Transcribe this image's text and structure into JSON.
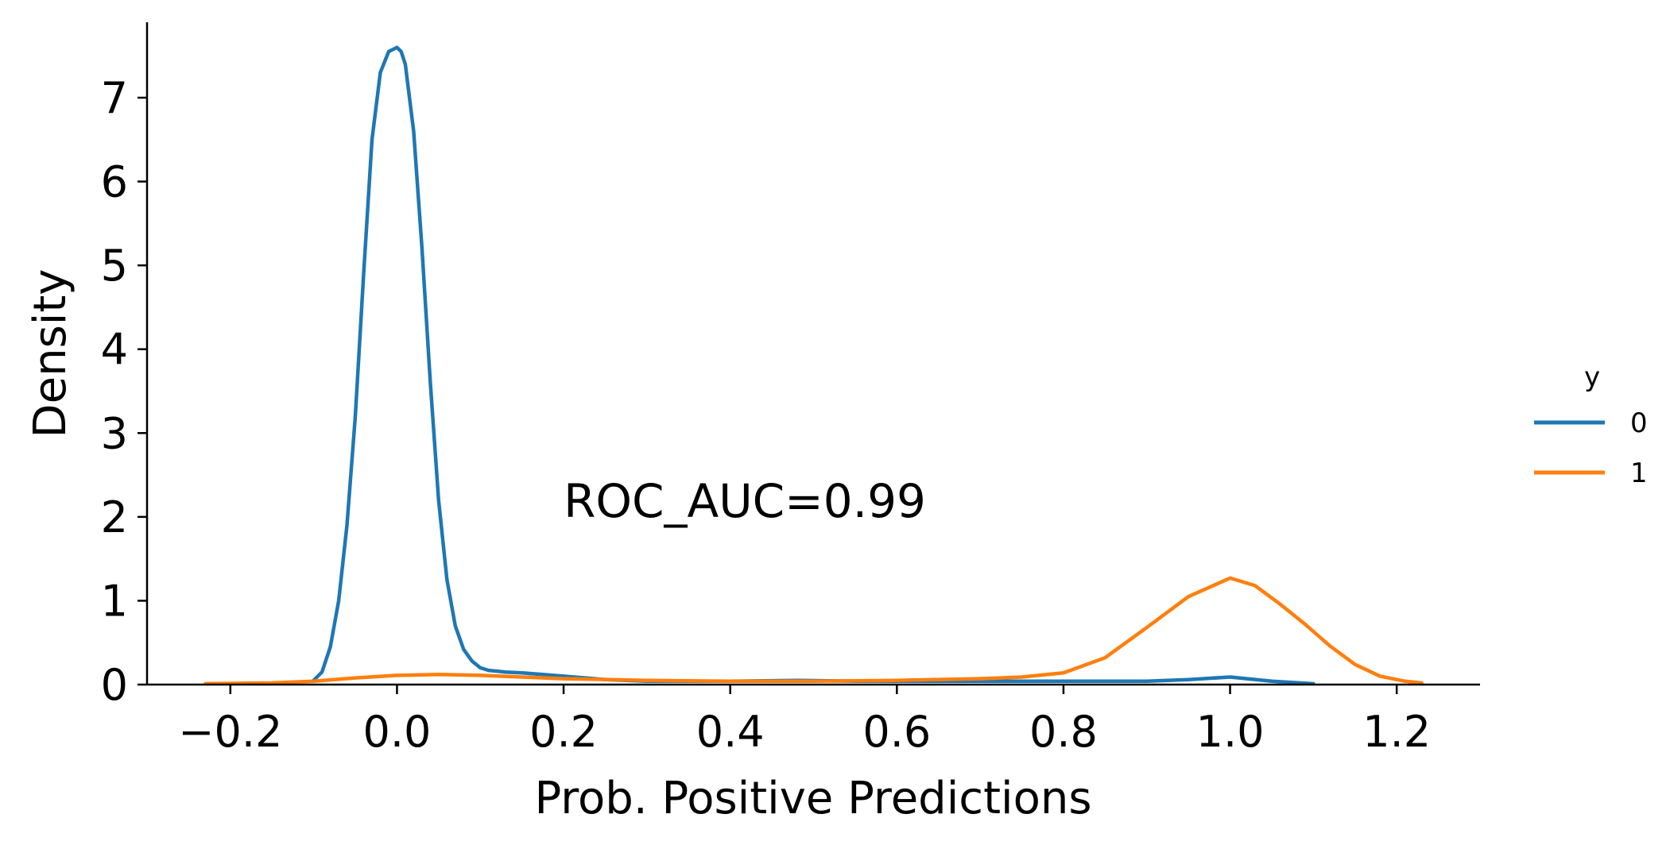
{
  "chart_data": {
    "type": "line",
    "xlabel": "Prob. Positive Predictions",
    "ylabel": "Density",
    "xlim": [
      -0.3,
      1.3
    ],
    "ylim": [
      0,
      7.9
    ],
    "x_ticks": [
      -0.2,
      0.0,
      0.2,
      0.4,
      0.6,
      0.8,
      1.0,
      1.2
    ],
    "x_tick_labels": [
      "−0.2",
      "0.0",
      "0.2",
      "0.4",
      "0.6",
      "0.8",
      "1.0",
      "1.2"
    ],
    "y_ticks": [
      0,
      1,
      2,
      3,
      4,
      5,
      6,
      7
    ],
    "y_tick_labels": [
      "0",
      "1",
      "2",
      "3",
      "4",
      "5",
      "6",
      "7"
    ],
    "grid": false,
    "annotation": {
      "text": "ROC_AUC=0.99",
      "x": 0.2,
      "y": 2.0
    },
    "legend": {
      "title": "y",
      "placement": "outside-right"
    },
    "series": [
      {
        "name": "0",
        "color": "#1f77b4",
        "x": [
          -0.1,
          -0.09,
          -0.08,
          -0.07,
          -0.06,
          -0.05,
          -0.04,
          -0.03,
          -0.02,
          -0.01,
          0.0,
          0.005,
          0.01,
          0.02,
          0.03,
          0.04,
          0.05,
          0.06,
          0.07,
          0.08,
          0.09,
          0.1,
          0.11,
          0.12,
          0.13,
          0.15,
          0.2,
          0.25,
          0.3,
          0.4,
          0.48,
          0.55,
          0.6,
          0.7,
          0.8,
          0.9,
          0.95,
          1.0,
          1.05,
          1.1
        ],
        "y": [
          0.05,
          0.15,
          0.45,
          1.0,
          1.9,
          3.2,
          4.9,
          6.5,
          7.3,
          7.55,
          7.6,
          7.55,
          7.4,
          6.6,
          5.2,
          3.6,
          2.2,
          1.25,
          0.7,
          0.42,
          0.28,
          0.2,
          0.17,
          0.16,
          0.15,
          0.14,
          0.1,
          0.06,
          0.04,
          0.04,
          0.05,
          0.04,
          0.04,
          0.04,
          0.04,
          0.04,
          0.06,
          0.09,
          0.04,
          0.01
        ]
      },
      {
        "name": "1",
        "color": "#ff7f0e",
        "x": [
          -0.23,
          -0.15,
          -0.1,
          -0.05,
          0.0,
          0.05,
          0.1,
          0.15,
          0.2,
          0.3,
          0.4,
          0.5,
          0.6,
          0.7,
          0.75,
          0.8,
          0.85,
          0.9,
          0.95,
          1.0,
          1.03,
          1.06,
          1.09,
          1.12,
          1.15,
          1.18,
          1.21,
          1.23
        ],
        "y": [
          0.01,
          0.02,
          0.04,
          0.08,
          0.11,
          0.12,
          0.11,
          0.09,
          0.07,
          0.05,
          0.04,
          0.04,
          0.05,
          0.07,
          0.09,
          0.14,
          0.32,
          0.68,
          1.05,
          1.27,
          1.18,
          0.96,
          0.72,
          0.46,
          0.24,
          0.1,
          0.04,
          0.02
        ]
      }
    ]
  }
}
